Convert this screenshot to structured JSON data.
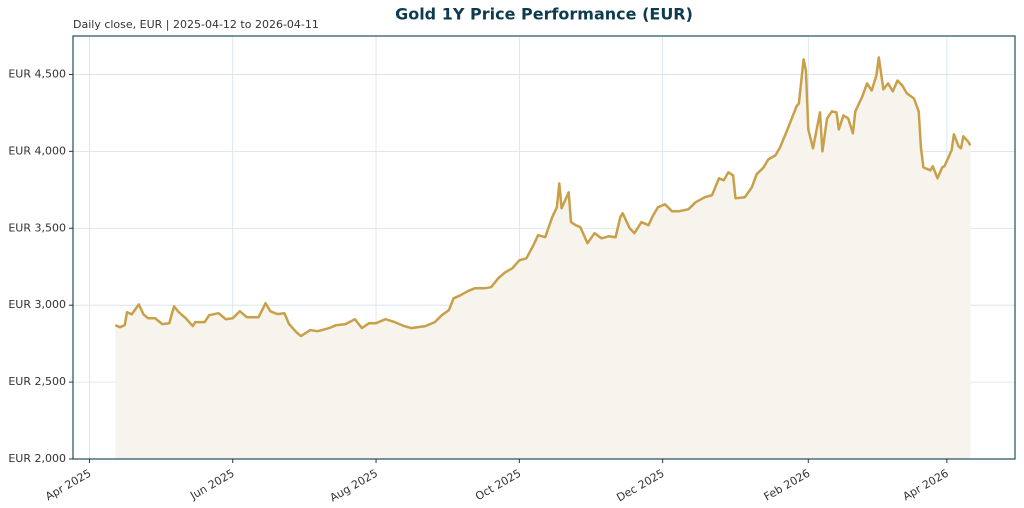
{
  "chart_data": {
    "type": "line",
    "title": "Gold 1Y Price Performance (EUR)",
    "subtitle": "Daily close, EUR | 2025-04-12 to 2026-04-11",
    "x": [
      "2025-04-12",
      "2025-04-14",
      "2025-04-16",
      "2025-04-17",
      "2025-04-19",
      "2025-04-22",
      "2025-04-24",
      "2025-04-26",
      "2025-04-29",
      "2025-05-02",
      "2025-05-05",
      "2025-05-07",
      "2025-05-09",
      "2025-05-12",
      "2025-05-15",
      "2025-05-16",
      "2025-05-20",
      "2025-05-22",
      "2025-05-26",
      "2025-05-29",
      "2025-06-01",
      "2025-06-04",
      "2025-06-07",
      "2025-06-12",
      "2025-06-15",
      "2025-06-17",
      "2025-06-20",
      "2025-06-23",
      "2025-06-25",
      "2025-06-28",
      "2025-06-30",
      "2025-07-04",
      "2025-07-07",
      "2025-07-09",
      "2025-07-12",
      "2025-07-15",
      "2025-07-19",
      "2025-07-23",
      "2025-07-26",
      "2025-07-29",
      "2025-08-01",
      "2025-08-05",
      "2025-08-09",
      "2025-08-13",
      "2025-08-16",
      "2025-08-22",
      "2025-08-26",
      "2025-08-29",
      "2025-09-01",
      "2025-09-03",
      "2025-09-06",
      "2025-09-09",
      "2025-09-12",
      "2025-09-16",
      "2025-09-19",
      "2025-09-22",
      "2025-09-25",
      "2025-09-28",
      "2025-10-01",
      "2025-10-04",
      "2025-10-07",
      "2025-10-09",
      "2025-10-12",
      "2025-10-15",
      "2025-10-17",
      "2025-10-18",
      "2025-10-19",
      "2025-10-22",
      "2025-10-23",
      "2025-10-25",
      "2025-10-27",
      "2025-10-30",
      "2025-11-02",
      "2025-11-05",
      "2025-11-08",
      "2025-11-11",
      "2025-11-13",
      "2025-11-14",
      "2025-11-17",
      "2025-11-19",
      "2025-11-22",
      "2025-11-25",
      "2025-11-27",
      "2025-11-29",
      "2025-12-02",
      "2025-12-05",
      "2025-12-08",
      "2025-12-12",
      "2025-12-15",
      "2025-12-19",
      "2025-12-22",
      "2025-12-25",
      "2025-12-27",
      "2025-12-29",
      "2025-12-31",
      "2026-01-01",
      "2026-01-05",
      "2026-01-08",
      "2026-01-10",
      "2026-01-13",
      "2026-01-15",
      "2026-01-18",
      "2026-01-20",
      "2026-01-23",
      "2026-01-25",
      "2026-01-27",
      "2026-01-28",
      "2026-01-30",
      "2026-01-31",
      "2026-02-01",
      "2026-02-03",
      "2026-02-06",
      "2026-02-07",
      "2026-02-09",
      "2026-02-11",
      "2026-02-13",
      "2026-02-14",
      "2026-02-16",
      "2026-02-18",
      "2026-02-20",
      "2026-02-21",
      "2026-02-24",
      "2026-02-26",
      "2026-02-28",
      "2026-03-02",
      "2026-03-03",
      "2026-03-05",
      "2026-03-07",
      "2026-03-09",
      "2026-03-11",
      "2026-03-13",
      "2026-03-15",
      "2026-03-18",
      "2026-03-20",
      "2026-03-21",
      "2026-03-22",
      "2026-03-25",
      "2026-03-26",
      "2026-03-28",
      "2026-03-30",
      "2026-03-31",
      "2026-04-03",
      "2026-04-04",
      "2026-04-06",
      "2026-04-07",
      "2026-04-08",
      "2026-04-10",
      "2026-04-11"
    ],
    "series": [
      {
        "name": "Gold",
        "color": "#c9a04a",
        "fill": "#f7f4ee",
        "values": [
          2870,
          2857,
          2870,
          2955,
          2940,
          3005,
          2940,
          2915,
          2915,
          2877,
          2883,
          2993,
          2955,
          2915,
          2864,
          2890,
          2890,
          2935,
          2948,
          2909,
          2915,
          2961,
          2922,
          2922,
          3013,
          2961,
          2942,
          2948,
          2877,
          2825,
          2799,
          2838,
          2831,
          2838,
          2851,
          2870,
          2877,
          2909,
          2851,
          2883,
          2883,
          2909,
          2890,
          2864,
          2851,
          2864,
          2890,
          2935,
          2968,
          3045,
          3065,
          3091,
          3110,
          3110,
          3117,
          3175,
          3214,
          3240,
          3292,
          3305,
          3390,
          3455,
          3442,
          3572,
          3637,
          3792,
          3630,
          3734,
          3540,
          3520,
          3507,
          3403,
          3468,
          3435,
          3448,
          3442,
          3572,
          3598,
          3500,
          3468,
          3540,
          3520,
          3585,
          3637,
          3656,
          3611,
          3611,
          3624,
          3669,
          3702,
          3715,
          3825,
          3812,
          3864,
          3844,
          3695,
          3702,
          3767,
          3851,
          3896,
          3948,
          3974,
          4026,
          4137,
          4214,
          4292,
          4312,
          4598,
          4526,
          4143,
          4020,
          4253,
          4000,
          4214,
          4260,
          4253,
          4143,
          4234,
          4214,
          4117,
          4260,
          4357,
          4442,
          4396,
          4494,
          4611,
          4403,
          4442,
          4390,
          4461,
          4429,
          4377,
          4344,
          4260,
          4020,
          3896,
          3877,
          3903,
          3825,
          3896,
          3903,
          4007,
          4111,
          4033,
          4020,
          4098,
          4065,
          4039
        ]
      }
    ],
    "xlim": [
      "2025-03-25",
      "2026-04-30"
    ],
    "xticks": [
      {
        "value": "2025-04-01",
        "label": "Apr 2025"
      },
      {
        "value": "2025-06-01",
        "label": "Jun 2025"
      },
      {
        "value": "2025-08-01",
        "label": "Aug 2025"
      },
      {
        "value": "2025-10-01",
        "label": "Oct 2025"
      },
      {
        "value": "2025-12-01",
        "label": "Dec 2025"
      },
      {
        "value": "2026-02-01",
        "label": "Feb 2026"
      },
      {
        "value": "2026-04-01",
        "label": "Apr 2026"
      }
    ],
    "ylim": [
      2000,
      4750
    ],
    "yticks": [
      {
        "value": 2000,
        "label": "EUR 2,000"
      },
      {
        "value": 2500,
        "label": "EUR 2,500"
      },
      {
        "value": 3000,
        "label": "EUR 3,000"
      },
      {
        "value": 3500,
        "label": "EUR 3,500"
      },
      {
        "value": 4000,
        "label": "EUR 4,000"
      },
      {
        "value": 4500,
        "label": "EUR 4,500"
      }
    ],
    "grid": true
  }
}
